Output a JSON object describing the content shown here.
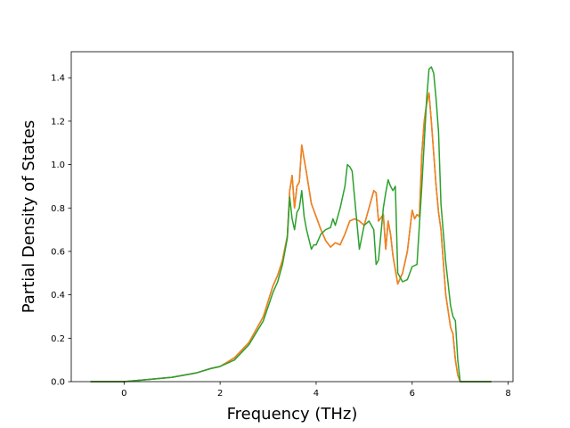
{
  "chart_data": {
    "type": "line",
    "title": "",
    "xlabel": "Frequency (THz)",
    "ylabel": "Partial Density of States",
    "xlim": [
      -1.1,
      8.1
    ],
    "ylim": [
      0.0,
      1.52
    ],
    "x_ticks": [
      0,
      2,
      4,
      6,
      8
    ],
    "y_ticks": [
      0.0,
      0.2,
      0.4,
      0.6,
      0.8,
      1.0,
      1.2,
      1.4
    ],
    "x_tick_labels": [
      "0",
      "2",
      "4",
      "6",
      "8"
    ],
    "y_tick_labels": [
      "0.0",
      "0.2",
      "0.4",
      "0.6",
      "0.8",
      "1.0",
      "1.2",
      "1.4"
    ],
    "grid": false,
    "legend": "none",
    "series": [
      {
        "color": "#1f77b4",
        "x": [
          -0.7,
          -0.3,
          0,
          0.5,
          1.0,
          1.5,
          1.8,
          2.0,
          2.3,
          2.6,
          2.9,
          3.1,
          3.2,
          3.3,
          3.4,
          3.45,
          3.5,
          3.55,
          3.6,
          3.65,
          3.7,
          3.8,
          3.9,
          4.0,
          4.1,
          4.2,
          4.3,
          4.4,
          4.5,
          4.6,
          4.7,
          4.8,
          4.9,
          5.0,
          5.1,
          5.2,
          5.25,
          5.3,
          5.4,
          5.45,
          5.5,
          5.55,
          5.6,
          5.7,
          5.8,
          5.9,
          6.0,
          6.05,
          6.1,
          6.15,
          6.2,
          6.25,
          6.3,
          6.35,
          6.4,
          6.5,
          6.55,
          6.6,
          6.7,
          6.8,
          6.85,
          6.9,
          6.95,
          7.0,
          7.3,
          7.65
        ],
        "values": [
          0.0,
          0.0,
          0.0,
          0.01,
          0.02,
          0.04,
          0.06,
          0.07,
          0.11,
          0.18,
          0.3,
          0.44,
          0.49,
          0.56,
          0.67,
          0.88,
          0.95,
          0.8,
          0.9,
          0.92,
          1.09,
          0.96,
          0.82,
          0.76,
          0.7,
          0.65,
          0.62,
          0.64,
          0.63,
          0.68,
          0.74,
          0.75,
          0.74,
          0.72,
          0.8,
          0.88,
          0.87,
          0.74,
          0.77,
          0.61,
          0.74,
          0.68,
          0.58,
          0.45,
          0.5,
          0.6,
          0.79,
          0.75,
          0.77,
          0.76,
          1.05,
          1.2,
          1.28,
          1.33,
          1.2,
          0.9,
          0.78,
          0.7,
          0.4,
          0.25,
          0.22,
          0.1,
          0.03,
          0.0,
          0.0,
          0.0
        ]
      },
      {
        "color": "#ff7f0e",
        "x": [
          -0.7,
          -0.3,
          0,
          0.5,
          1.0,
          1.5,
          1.8,
          2.0,
          2.3,
          2.6,
          2.9,
          3.1,
          3.2,
          3.3,
          3.4,
          3.45,
          3.5,
          3.55,
          3.6,
          3.65,
          3.7,
          3.8,
          3.9,
          4.0,
          4.1,
          4.2,
          4.3,
          4.4,
          4.5,
          4.6,
          4.7,
          4.8,
          4.9,
          5.0,
          5.1,
          5.2,
          5.25,
          5.3,
          5.4,
          5.45,
          5.5,
          5.55,
          5.6,
          5.7,
          5.8,
          5.9,
          6.0,
          6.05,
          6.1,
          6.15,
          6.2,
          6.25,
          6.3,
          6.35,
          6.4,
          6.5,
          6.55,
          6.6,
          6.7,
          6.8,
          6.85,
          6.9,
          6.95,
          7.0,
          7.3,
          7.65
        ],
        "values": [
          0.0,
          0.0,
          0.0,
          0.01,
          0.02,
          0.04,
          0.06,
          0.07,
          0.11,
          0.18,
          0.3,
          0.44,
          0.49,
          0.56,
          0.67,
          0.88,
          0.95,
          0.8,
          0.9,
          0.92,
          1.09,
          0.96,
          0.82,
          0.76,
          0.7,
          0.65,
          0.62,
          0.64,
          0.63,
          0.68,
          0.74,
          0.75,
          0.74,
          0.72,
          0.8,
          0.88,
          0.87,
          0.74,
          0.77,
          0.61,
          0.74,
          0.68,
          0.58,
          0.45,
          0.5,
          0.6,
          0.79,
          0.75,
          0.77,
          0.76,
          1.05,
          1.2,
          1.28,
          1.33,
          1.2,
          0.9,
          0.78,
          0.7,
          0.4,
          0.25,
          0.22,
          0.1,
          0.03,
          0.0,
          0.0,
          0.0
        ]
      },
      {
        "color": "#2ca02c",
        "x": [
          -0.7,
          -0.3,
          0,
          0.5,
          1.0,
          1.5,
          1.8,
          2.0,
          2.3,
          2.6,
          2.9,
          3.1,
          3.2,
          3.3,
          3.4,
          3.45,
          3.5,
          3.55,
          3.6,
          3.65,
          3.7,
          3.75,
          3.8,
          3.9,
          3.95,
          4.0,
          4.1,
          4.2,
          4.3,
          4.35,
          4.4,
          4.5,
          4.6,
          4.65,
          4.7,
          4.75,
          4.8,
          4.9,
          5.0,
          5.1,
          5.2,
          5.25,
          5.3,
          5.4,
          5.45,
          5.5,
          5.55,
          5.6,
          5.65,
          5.7,
          5.8,
          5.9,
          6.0,
          6.1,
          6.2,
          6.25,
          6.3,
          6.35,
          6.4,
          6.45,
          6.5,
          6.55,
          6.6,
          6.7,
          6.8,
          6.85,
          6.9,
          6.95,
          7.0,
          7.3,
          7.65
        ],
        "values": [
          0.0,
          0.0,
          0.0,
          0.01,
          0.02,
          0.04,
          0.06,
          0.07,
          0.1,
          0.17,
          0.28,
          0.41,
          0.46,
          0.54,
          0.66,
          0.85,
          0.75,
          0.7,
          0.78,
          0.8,
          0.88,
          0.76,
          0.7,
          0.61,
          0.63,
          0.63,
          0.68,
          0.7,
          0.71,
          0.75,
          0.72,
          0.8,
          0.9,
          1.0,
          0.99,
          0.97,
          0.85,
          0.61,
          0.72,
          0.74,
          0.7,
          0.54,
          0.56,
          0.8,
          0.87,
          0.93,
          0.9,
          0.88,
          0.9,
          0.5,
          0.46,
          0.47,
          0.53,
          0.54,
          0.9,
          1.1,
          1.3,
          1.44,
          1.45,
          1.42,
          1.3,
          1.15,
          0.82,
          0.55,
          0.35,
          0.3,
          0.28,
          0.1,
          0.0,
          0.0,
          0.0
        ]
      }
    ]
  }
}
